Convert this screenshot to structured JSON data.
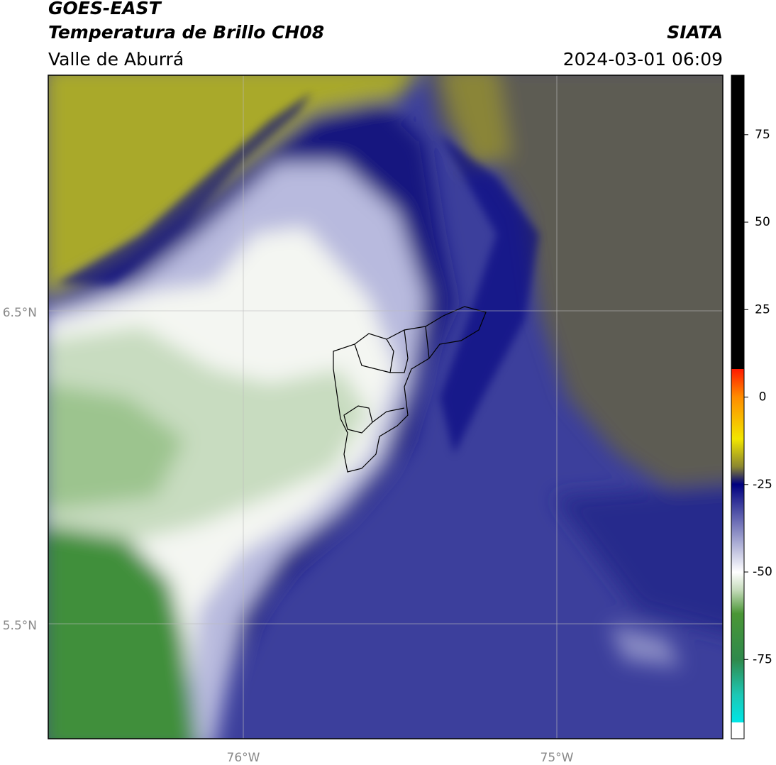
{
  "header": {
    "title": "GOES-EAST",
    "subtitle": "Temperatura de Brillo CH08",
    "source": "SIATA",
    "region": "Valle de Aburrá",
    "datetime": "2024-03-01 06:09"
  },
  "map": {
    "lat_labels": [
      "6.5°N",
      "5.5°N"
    ],
    "lon_labels": [
      "76°W",
      "75°W"
    ]
  },
  "colorbar": {
    "lim": [
      -93,
      92
    ],
    "ticks": [
      75,
      50,
      25,
      0,
      -25,
      -50,
      -75
    ]
  }
}
